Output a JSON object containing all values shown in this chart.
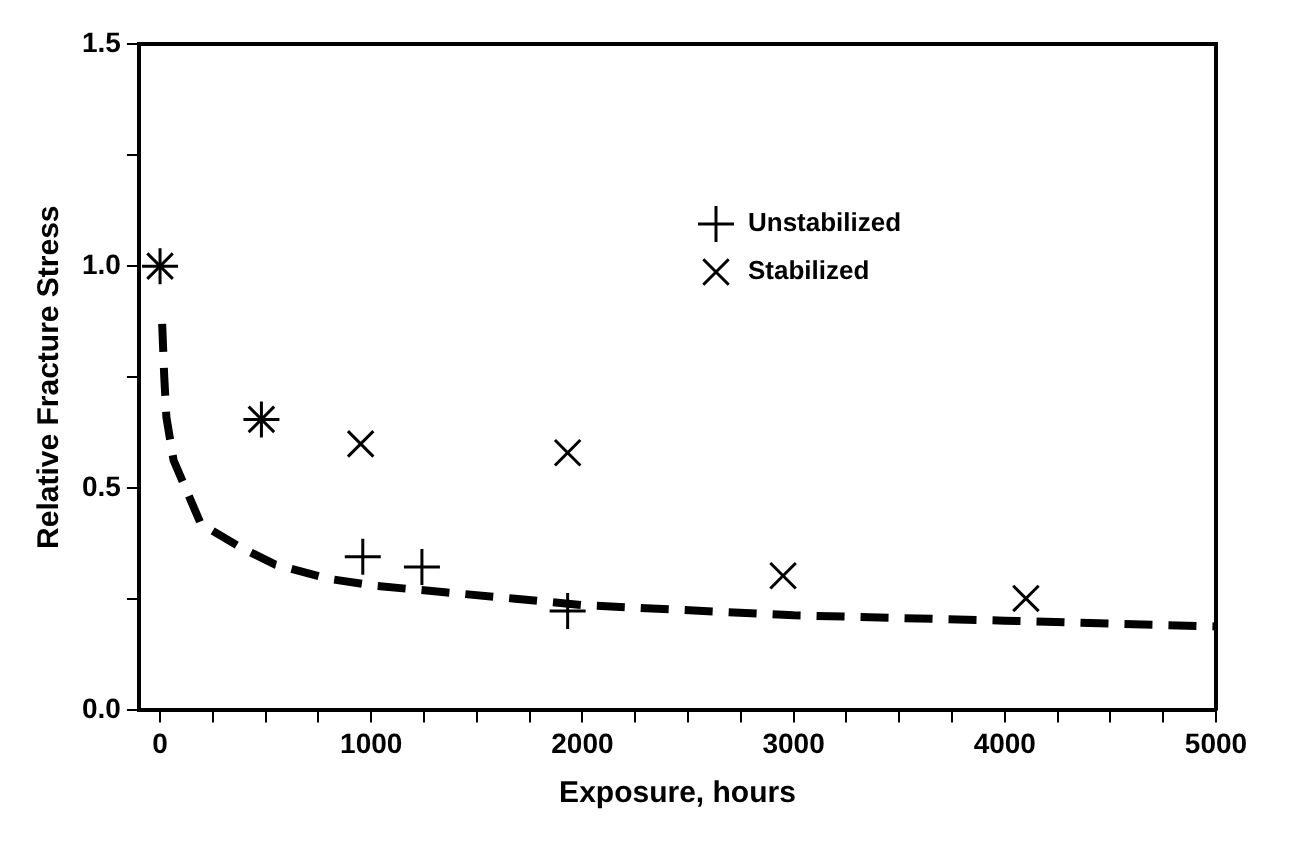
{
  "chart_data": {
    "type": "scatter",
    "xlabel": "Exposure, hours",
    "ylabel": "Relative Fracture Stress",
    "xlim": [
      -100,
      5000
    ],
    "xticks": [
      0,
      {
        "value": 250,
        "label": null
      },
      {
        "value": 500,
        "label": null
      },
      {
        "value": 750,
        "label": null
      },
      1000,
      {
        "value": 1250,
        "label": null
      },
      {
        "value": 1500,
        "label": null
      },
      {
        "value": 1750,
        "label": null
      },
      2000,
      {
        "value": 2250,
        "label": null
      },
      {
        "value": 2500,
        "label": null
      },
      {
        "value": 2750,
        "label": null
      },
      3000,
      {
        "value": 3250,
        "label": null
      },
      {
        "value": 3500,
        "label": null
      },
      {
        "value": 3750,
        "label": null
      },
      4000,
      {
        "value": 4250,
        "label": null
      },
      {
        "value": 4500,
        "label": null
      },
      {
        "value": 4750,
        "label": null
      },
      5000
    ],
    "ylim": [
      0,
      1.5
    ],
    "yticks": [
      {
        "value": 0,
        "label": "0.0"
      },
      {
        "value": 0.25,
        "label": null
      },
      {
        "value": 0.5,
        "label": "0.5"
      },
      {
        "value": 0.75,
        "label": null
      },
      {
        "value": 1,
        "label": "1.0"
      },
      {
        "value": 1.25,
        "label": null
      },
      {
        "value": 1.5,
        "label": "1.5"
      }
    ],
    "grid": false,
    "legend": "top right",
    "series": [
      {
        "name": "Unstabilized",
        "marker": "cross",
        "color": "#000000",
        "x": [
          0,
          480,
          960,
          1240,
          1930
        ],
        "values": [
          1.0,
          0.655,
          0.346,
          0.323,
          0.224
        ]
      },
      {
        "name": "Stabilized",
        "marker": "x",
        "color": "#000000",
        "x": [
          0,
          480,
          950,
          1930,
          2950,
          4100
        ],
        "values": [
          1.0,
          0.655,
          0.6,
          0.58,
          0.303,
          0.252
        ]
      },
      {
        "type": "line",
        "marker": "none",
        "line_style": "dashed",
        "color": "#000000",
        "x": [
          10,
          20,
          30,
          64,
          193,
          385,
          546,
          803,
          1027,
          1348,
          1669,
          2000,
          3000,
          4000,
          5000
        ],
        "values": [
          0.87,
          0.75,
          0.66,
          0.563,
          0.42,
          0.366,
          0.328,
          0.296,
          0.28,
          0.266,
          0.252,
          0.237,
          0.214,
          0.202,
          0.189
        ]
      }
    ]
  }
}
